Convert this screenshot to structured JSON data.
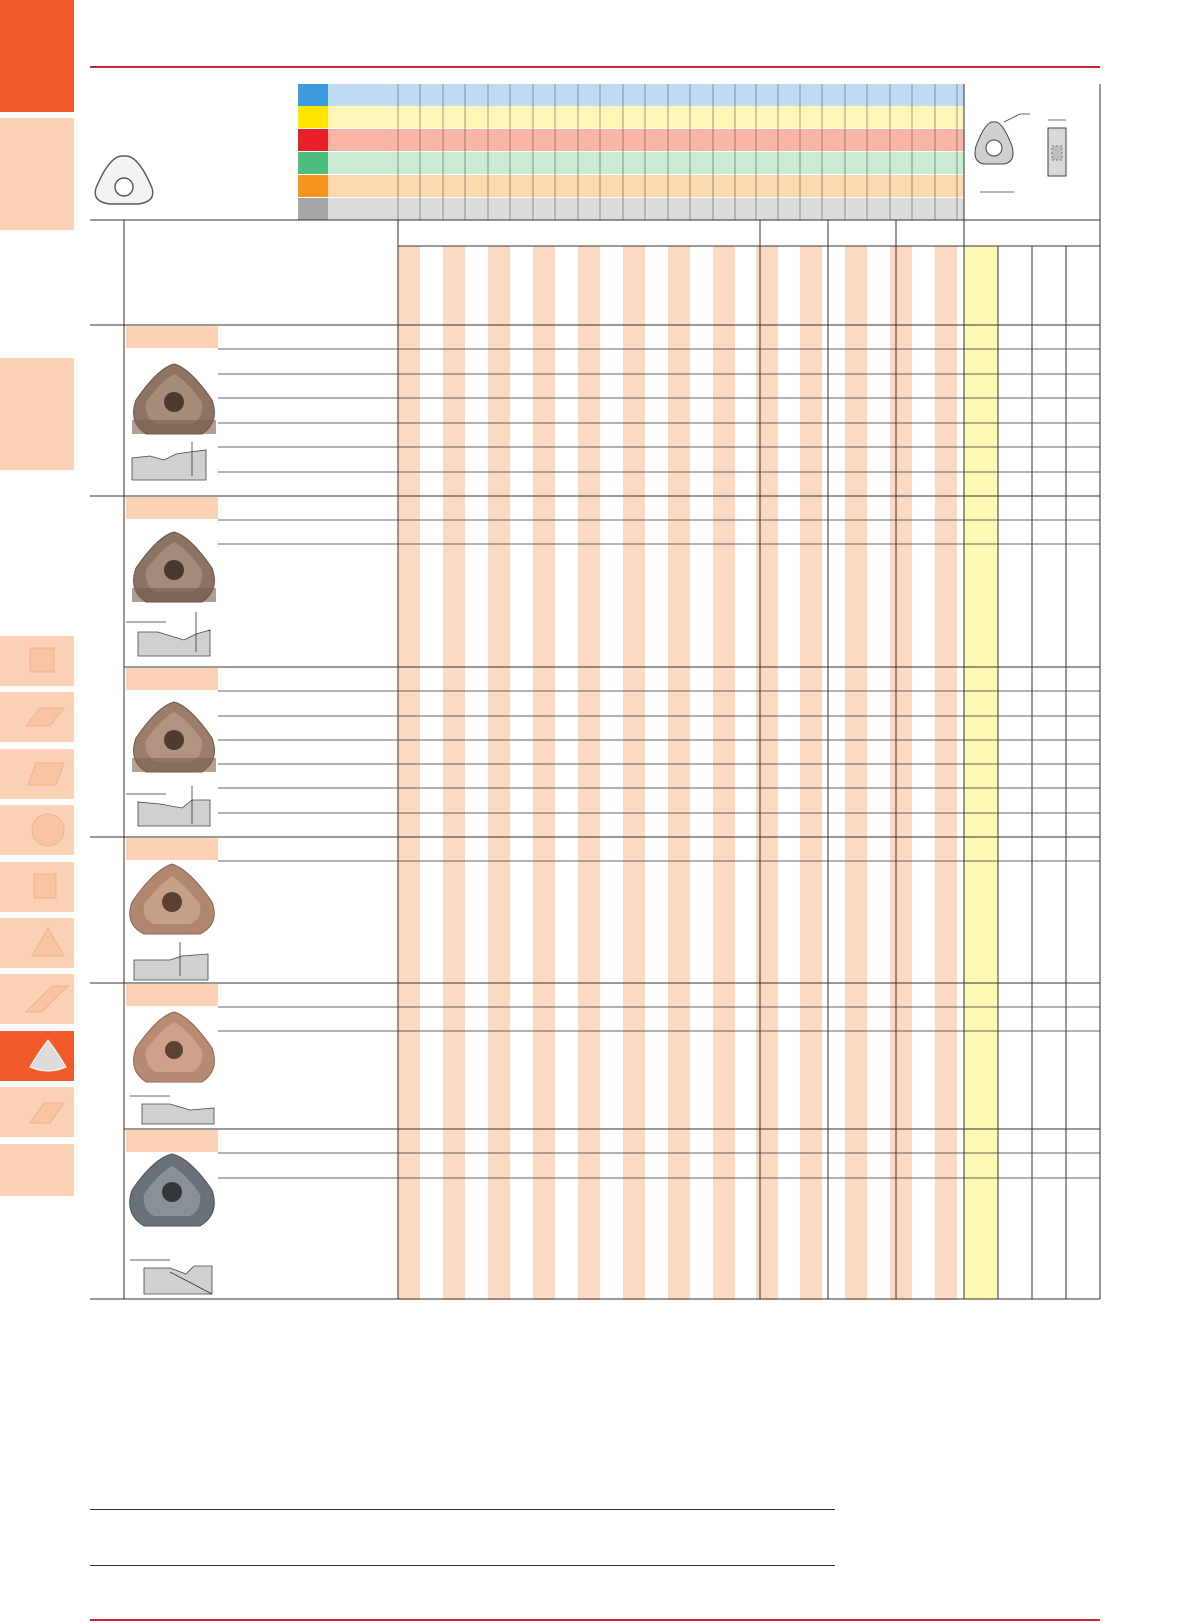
{
  "page": {
    "title": "",
    "colors": {
      "accent": "#f15a29",
      "accent_light": "#fcd2b7",
      "rule": "#c62633",
      "grade_column": "#fcd9c3",
      "highlight_column": "#fff9b4"
    }
  },
  "side_tabs": [
    {
      "icon": "blank-tab",
      "active": true
    },
    {
      "icon": "blank-tab",
      "active": false
    },
    {
      "icon": "blank-tab",
      "active": false
    },
    {
      "icon": "square-insert-icon",
      "active": false
    },
    {
      "icon": "parallelogram-insert-icon",
      "active": false
    },
    {
      "icon": "rhombus-insert-icon",
      "active": false
    },
    {
      "icon": "round-insert-icon",
      "active": false
    },
    {
      "icon": "square-insert-icon",
      "active": false
    },
    {
      "icon": "triangle-insert-icon",
      "active": false
    },
    {
      "icon": "rhombus-insert-icon",
      "active": false
    },
    {
      "icon": "trigon-insert-icon",
      "active": true
    },
    {
      "icon": "parallelogram-insert-icon",
      "active": false
    },
    {
      "icon": "blank-tab",
      "active": false
    }
  ],
  "material_legend": [
    {
      "swatch": "#3b9bdc",
      "band": "#bfdcf4"
    },
    {
      "swatch": "#ffe600",
      "band": "#fff6b8"
    },
    {
      "swatch": "#e8202a",
      "band": "#f9b6a6"
    },
    {
      "swatch": "#4dbd82",
      "band": "#c9ebd4"
    },
    {
      "swatch": "#f7941d",
      "band": "#fcd9b0"
    },
    {
      "swatch": "#a6a6a6",
      "band": "#dcdcdc"
    }
  ],
  "insert_groups": [
    {
      "rows": 7,
      "image": "trigon-insert-photo-brown"
    },
    {
      "rows": 5,
      "image": "trigon-insert-photo-brown"
    },
    {
      "rows": 7,
      "image": "trigon-insert-photo-brown"
    },
    {
      "rows": 6,
      "image": "trigon-insert-photo-copper"
    },
    {
      "rows": 6,
      "image": "trigon-insert-photo-copper"
    },
    {
      "rows": 7,
      "image": "trigon-insert-photo-grey"
    }
  ]
}
